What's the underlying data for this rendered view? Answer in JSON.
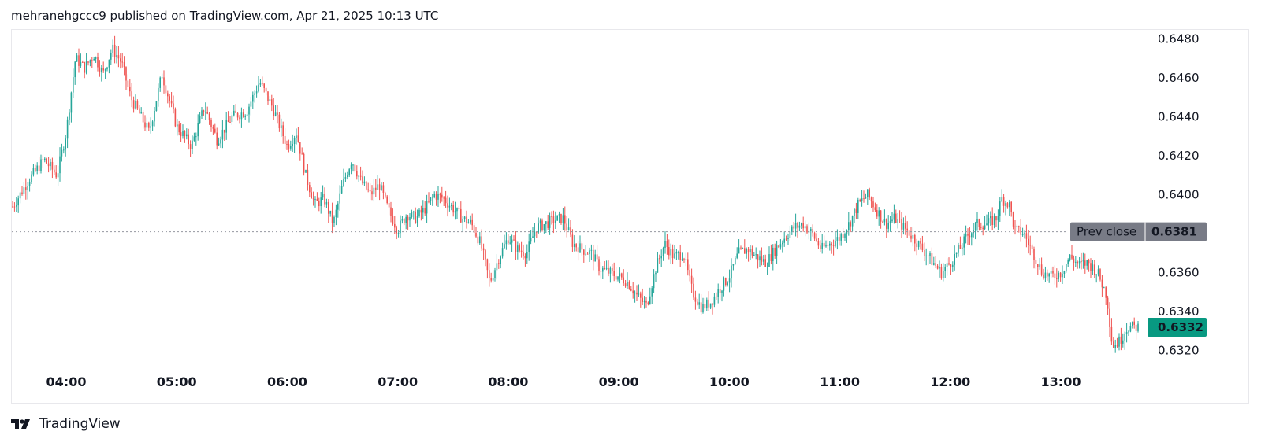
{
  "header": {
    "text": "mehranehgccc9 published on TradingView.com, Apr 21, 2025 10:13 UTC"
  },
  "footer": {
    "brand": "TradingView"
  },
  "colors": {
    "up": "#26a69a",
    "down": "#ef5350",
    "prev_close_bg": "#787b86",
    "last_price_bg": "#089981"
  },
  "chart_data": {
    "type": "candlestick",
    "time_ticks": [
      "04:00",
      "05:00",
      "06:00",
      "07:00",
      "08:00",
      "09:00",
      "10:00",
      "11:00",
      "12:00",
      "13:00"
    ],
    "price_ticks": [
      "0.6480",
      "0.6460",
      "0.6440",
      "0.6420",
      "0.6400",
      "0.6380",
      "0.6360",
      "0.6340",
      "0.6320"
    ],
    "ylim": [
      0.6313,
      0.6483
    ],
    "prev_close": {
      "label": "Prev close",
      "value": "0.6381"
    },
    "last_price": {
      "value": "0.6332"
    },
    "series_path": [
      [
        "03:31",
        0.6394
      ],
      [
        "03:40",
        0.6408
      ],
      [
        "03:48",
        0.6418
      ],
      [
        "03:55",
        0.641
      ],
      [
        "04:00",
        0.6432
      ],
      [
        "04:05",
        0.647
      ],
      [
        "04:10",
        0.6465
      ],
      [
        "04:15",
        0.6472
      ],
      [
        "04:20",
        0.6462
      ],
      [
        "04:25",
        0.6475
      ],
      [
        "04:30",
        0.6468
      ],
      [
        "04:35",
        0.645
      ],
      [
        "04:45",
        0.6432
      ],
      [
        "04:52",
        0.6462
      ],
      [
        "05:00",
        0.6435
      ],
      [
        "05:08",
        0.6425
      ],
      [
        "05:15",
        0.6445
      ],
      [
        "05:22",
        0.6428
      ],
      [
        "05:30",
        0.644
      ],
      [
        "05:38",
        0.6443
      ],
      [
        "05:45",
        0.6458
      ],
      [
        "05:52",
        0.6445
      ],
      [
        "06:00",
        0.6425
      ],
      [
        "06:05",
        0.6432
      ],
      [
        "06:10",
        0.641
      ],
      [
        "06:15",
        0.6395
      ],
      [
        "06:20",
        0.6398
      ],
      [
        "06:25",
        0.6385
      ],
      [
        "06:30",
        0.6405
      ],
      [
        "06:35",
        0.6418
      ],
      [
        "06:40",
        0.6407
      ],
      [
        "06:45",
        0.64
      ],
      [
        "06:50",
        0.6405
      ],
      [
        "06:55",
        0.6392
      ],
      [
        "07:00",
        0.6382
      ],
      [
        "07:05",
        0.639
      ],
      [
        "07:10",
        0.6388
      ],
      [
        "07:15",
        0.6393
      ],
      [
        "07:20",
        0.64
      ],
      [
        "07:25",
        0.6398
      ],
      [
        "07:30",
        0.6393
      ],
      [
        "07:35",
        0.6388
      ],
      [
        "07:40",
        0.6385
      ],
      [
        "07:45",
        0.6375
      ],
      [
        "07:50",
        0.6355
      ],
      [
        "07:55",
        0.6368
      ],
      [
        "08:00",
        0.6378
      ],
      [
        "08:05",
        0.6372
      ],
      [
        "08:10",
        0.637
      ],
      [
        "08:15",
        0.6383
      ],
      [
        "08:20",
        0.6385
      ],
      [
        "08:25",
        0.6387
      ],
      [
        "08:30",
        0.6388
      ],
      [
        "08:35",
        0.6375
      ],
      [
        "08:40",
        0.6372
      ],
      [
        "08:45",
        0.637
      ],
      [
        "08:50",
        0.6362
      ],
      [
        "08:55",
        0.636
      ],
      [
        "09:00",
        0.6358
      ],
      [
        "09:05",
        0.6355
      ],
      [
        "09:10",
        0.6348
      ],
      [
        "09:15",
        0.6343
      ],
      [
        "09:20",
        0.6362
      ],
      [
        "09:25",
        0.6375
      ],
      [
        "09:30",
        0.6368
      ],
      [
        "09:35",
        0.637
      ],
      [
        "09:40",
        0.635
      ],
      [
        "09:45",
        0.6342
      ],
      [
        "09:50",
        0.6345
      ],
      [
        "09:55",
        0.6352
      ],
      [
        "10:00",
        0.6358
      ],
      [
        "10:05",
        0.637
      ],
      [
        "10:10",
        0.6372
      ],
      [
        "10:15",
        0.6368
      ],
      [
        "10:20",
        0.6365
      ],
      [
        "10:25",
        0.6372
      ],
      [
        "10:30",
        0.6378
      ],
      [
        "10:35",
        0.6383
      ],
      [
        "10:40",
        0.6385
      ],
      [
        "10:45",
        0.638
      ],
      [
        "10:50",
        0.6372
      ],
      [
        "10:55",
        0.6375
      ],
      [
        "11:00",
        0.6378
      ],
      [
        "11:05",
        0.6385
      ],
      [
        "11:10",
        0.6395
      ],
      [
        "11:15",
        0.64
      ],
      [
        "11:20",
        0.6392
      ],
      [
        "11:25",
        0.6385
      ],
      [
        "11:30",
        0.6388
      ],
      [
        "11:35",
        0.6383
      ],
      [
        "11:40",
        0.6378
      ],
      [
        "11:45",
        0.6372
      ],
      [
        "11:50",
        0.6366
      ],
      [
        "11:55",
        0.636
      ],
      [
        "12:00",
        0.6365
      ],
      [
        "12:05",
        0.6372
      ],
      [
        "12:10",
        0.638
      ],
      [
        "12:15",
        0.6385
      ],
      [
        "12:20",
        0.6385
      ],
      [
        "12:25",
        0.6388
      ],
      [
        "12:28",
        0.6398
      ],
      [
        "12:32",
        0.6395
      ],
      [
        "12:35",
        0.6382
      ],
      [
        "12:40",
        0.638
      ],
      [
        "12:45",
        0.637
      ],
      [
        "12:50",
        0.636
      ],
      [
        "12:55",
        0.6358
      ],
      [
        "13:00",
        0.636
      ],
      [
        "13:05",
        0.6368
      ],
      [
        "13:10",
        0.6364
      ],
      [
        "13:15",
        0.6365
      ],
      [
        "13:20",
        0.636
      ],
      [
        "13:25",
        0.6348
      ],
      [
        "13:28",
        0.6322
      ],
      [
        "13:32",
        0.6325
      ],
      [
        "13:36",
        0.6332
      ]
    ]
  }
}
